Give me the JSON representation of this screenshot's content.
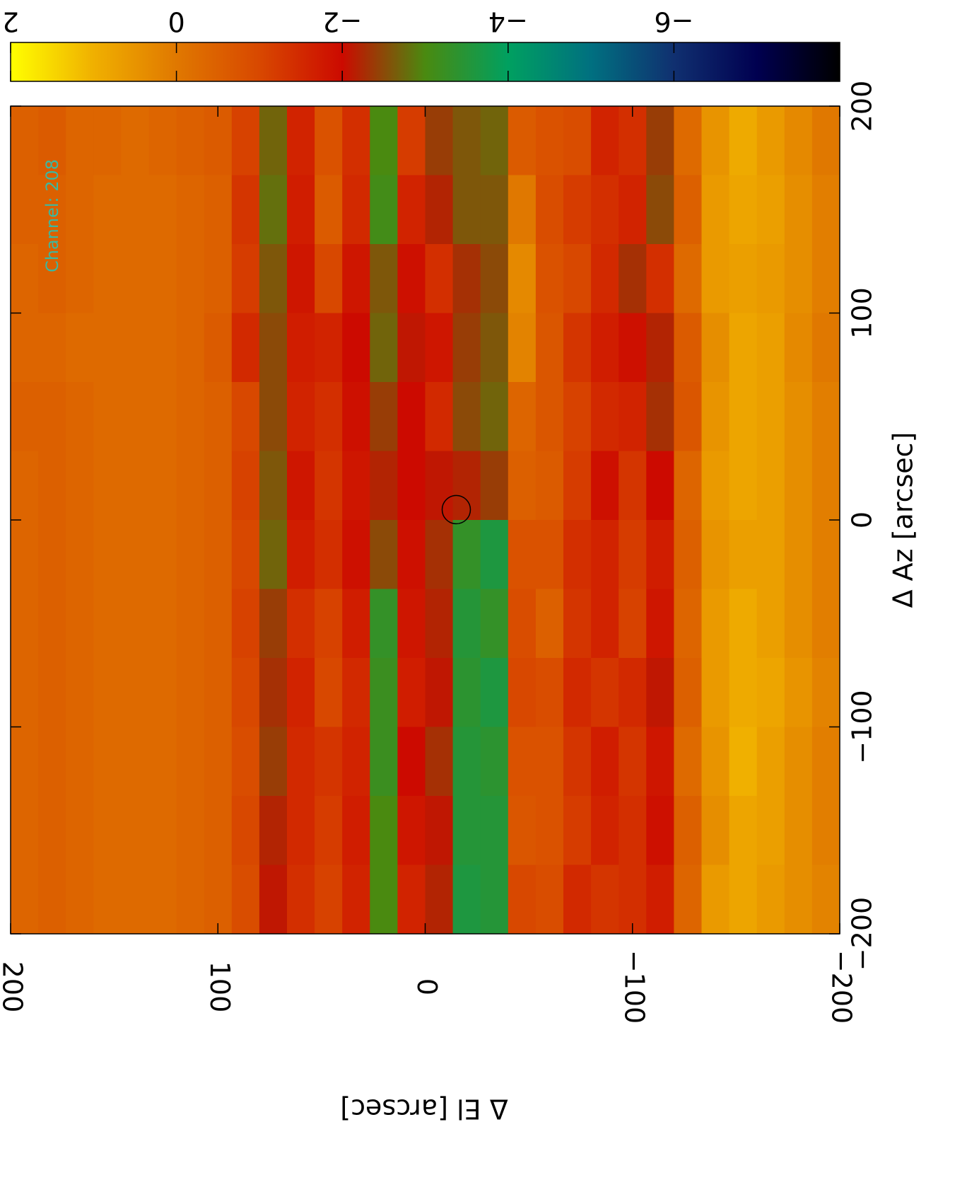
{
  "chart_data": {
    "type": "heatmap",
    "xlabel": "Δ El [arcsec]",
    "ylabel": "Δ Az [arcsec]",
    "annotation": "Channel: 208",
    "xlim": [
      200,
      -200
    ],
    "ylim": [
      200,
      -200
    ],
    "xticks": [
      200,
      100,
      0,
      {
        "value": -100,
        "label": "−100"
      },
      {
        "value": -200,
        "label": "−200"
      }
    ],
    "yticks": [
      200,
      100,
      0,
      {
        "value": -100,
        "label": "−100"
      },
      {
        "value": -200,
        "label": "−200"
      }
    ],
    "clim": [
      2,
      -8
    ],
    "colorbar_ticks": [
      2,
      0,
      {
        "value": -2,
        "label": "−2"
      },
      {
        "value": -4,
        "label": "−4"
      },
      {
        "value": -6,
        "label": "−6"
      }
    ],
    "colormap": [
      "#ffff00",
      "#f0b000",
      "#e07800",
      "#d84800",
      "#cc0a00",
      "#4a8a10",
      "#00a060",
      "#007080",
      "#103070",
      "#000050",
      "#000000"
    ],
    "marker": {
      "x": -15,
      "y": 5
    },
    "z": [
      [
        -0.5,
        -0.6,
        -0.4,
        -0.4,
        -0.3,
        -0.4,
        -0.5,
        -0.6,
        -1.1,
        -2.7,
        -1.6,
        -0.8,
        -1.4,
        -3.0,
        -1.2,
        -2.4,
        -2.6,
        -2.7,
        -0.6,
        -0.8,
        -0.9,
        -1.6,
        -1.4,
        -2.4,
        -0.3,
        0.5,
        0.9,
        0.6,
        0.3,
        0.0
      ],
      [
        -0.5,
        -0.5,
        -0.4,
        -0.3,
        -0.3,
        -0.3,
        -0.4,
        -0.5,
        -1.3,
        -2.8,
        -1.7,
        -0.6,
        -1.5,
        -3.1,
        -1.6,
        -2.2,
        -2.6,
        -2.6,
        0.0,
        -0.9,
        -1.2,
        -1.4,
        -1.6,
        -2.5,
        -0.5,
        0.6,
        0.8,
        0.7,
        0.4,
        0.1
      ],
      [
        -0.4,
        -0.5,
        -0.4,
        -0.3,
        -0.3,
        -0.3,
        -0.4,
        -0.5,
        -1.2,
        -2.6,
        -1.8,
        -1.0,
        -1.8,
        -2.6,
        -1.9,
        -1.4,
        -2.3,
        -2.5,
        0.3,
        -0.8,
        -1.0,
        -1.5,
        -2.3,
        -1.4,
        -0.3,
        0.6,
        0.7,
        0.6,
        0.4,
        0.1
      ],
      [
        -0.4,
        -0.4,
        -0.3,
        -0.3,
        -0.3,
        -0.3,
        -0.4,
        -0.6,
        -1.5,
        -2.5,
        -1.7,
        -1.6,
        -2.0,
        -2.7,
        -2.1,
        -1.8,
        -2.4,
        -2.6,
        0.2,
        -0.7,
        -1.3,
        -1.7,
        -1.9,
        -2.2,
        -0.6,
        0.4,
        0.8,
        0.7,
        0.3,
        0.0
      ],
      [
        -0.5,
        -0.5,
        -0.4,
        -0.3,
        -0.3,
        -0.3,
        -0.4,
        -0.5,
        -1.0,
        -2.5,
        -1.6,
        -1.4,
        -1.9,
        -2.4,
        -2.0,
        -1.5,
        -2.5,
        -2.7,
        -0.4,
        -0.7,
        -1.1,
        -1.5,
        -1.6,
        -2.3,
        -0.7,
        0.5,
        0.8,
        0.7,
        0.4,
        0.1
      ],
      [
        -0.4,
        -0.5,
        -0.4,
        -0.3,
        -0.3,
        -0.3,
        -0.4,
        -0.5,
        -1.1,
        -2.6,
        -1.8,
        -1.3,
        -1.8,
        -2.2,
        -2.0,
        -2.1,
        -2.2,
        -2.4,
        -0.5,
        -0.6,
        -1.2,
        -1.9,
        -1.3,
        -2.0,
        -0.4,
        0.6,
        0.8,
        0.7,
        0.4,
        0.1
      ],
      [
        -0.4,
        -0.5,
        -0.4,
        -0.3,
        -0.3,
        -0.3,
        -0.4,
        -0.5,
        -1.0,
        -2.7,
        -1.7,
        -1.4,
        -1.9,
        -2.5,
        -1.9,
        -2.3,
        -3.3,
        -3.6,
        -0.8,
        -0.8,
        -1.4,
        -1.6,
        -1.2,
        -1.7,
        -0.5,
        0.5,
        0.7,
        0.7,
        0.4,
        0.1
      ],
      [
        -0.4,
        -0.5,
        -0.4,
        -0.3,
        -0.3,
        -0.3,
        -0.4,
        -0.5,
        -1.1,
        -2.4,
        -1.4,
        -1.1,
        -1.7,
        -3.3,
        -1.8,
        -2.2,
        -3.5,
        -3.3,
        -0.9,
        -0.5,
        -1.3,
        -1.6,
        -1.1,
        -1.8,
        -0.4,
        0.6,
        0.9,
        0.7,
        0.4,
        0.1
      ],
      [
        -0.4,
        -0.5,
        -0.4,
        -0.3,
        -0.3,
        -0.3,
        -0.4,
        -0.5,
        -1.0,
        -2.3,
        -1.6,
        -1.0,
        -1.5,
        -3.2,
        -1.7,
        -2.1,
        -3.4,
        -3.6,
        -1.0,
        -0.9,
        -1.5,
        -1.3,
        -1.5,
        -2.1,
        -0.5,
        0.6,
        0.9,
        0.8,
        0.5,
        0.2
      ],
      [
        -0.4,
        -0.5,
        -0.4,
        -0.3,
        -0.3,
        -0.3,
        -0.4,
        -0.5,
        -0.9,
        -2.4,
        -1.5,
        -1.3,
        -1.6,
        -3.2,
        -2.0,
        -2.3,
        -3.5,
        -3.4,
        -0.8,
        -0.8,
        -1.3,
        -1.7,
        -1.3,
        -1.8,
        -0.3,
        0.5,
        1.0,
        0.7,
        0.4,
        0.1
      ],
      [
        -0.4,
        -0.5,
        -0.4,
        -0.3,
        -0.3,
        -0.3,
        -0.4,
        -0.5,
        -1.0,
        -2.2,
        -1.5,
        -1.2,
        -1.7,
        -3.0,
        -1.8,
        -2.1,
        -3.5,
        -3.5,
        -0.7,
        -0.8,
        -1.2,
        -1.6,
        -1.4,
        -1.9,
        -0.5,
        0.4,
        0.8,
        0.7,
        0.4,
        0.1
      ],
      [
        -0.4,
        -0.5,
        -0.4,
        -0.3,
        -0.3,
        -0.3,
        -0.4,
        -0.5,
        -0.9,
        -2.1,
        -1.4,
        -1.1,
        -1.6,
        -3.0,
        -1.6,
        -2.2,
        -3.6,
        -3.5,
        -1.0,
        -0.9,
        -1.5,
        -1.3,
        -1.4,
        -1.7,
        -0.4,
        0.6,
        0.8,
        0.6,
        0.4,
        0.2
      ]
    ]
  }
}
